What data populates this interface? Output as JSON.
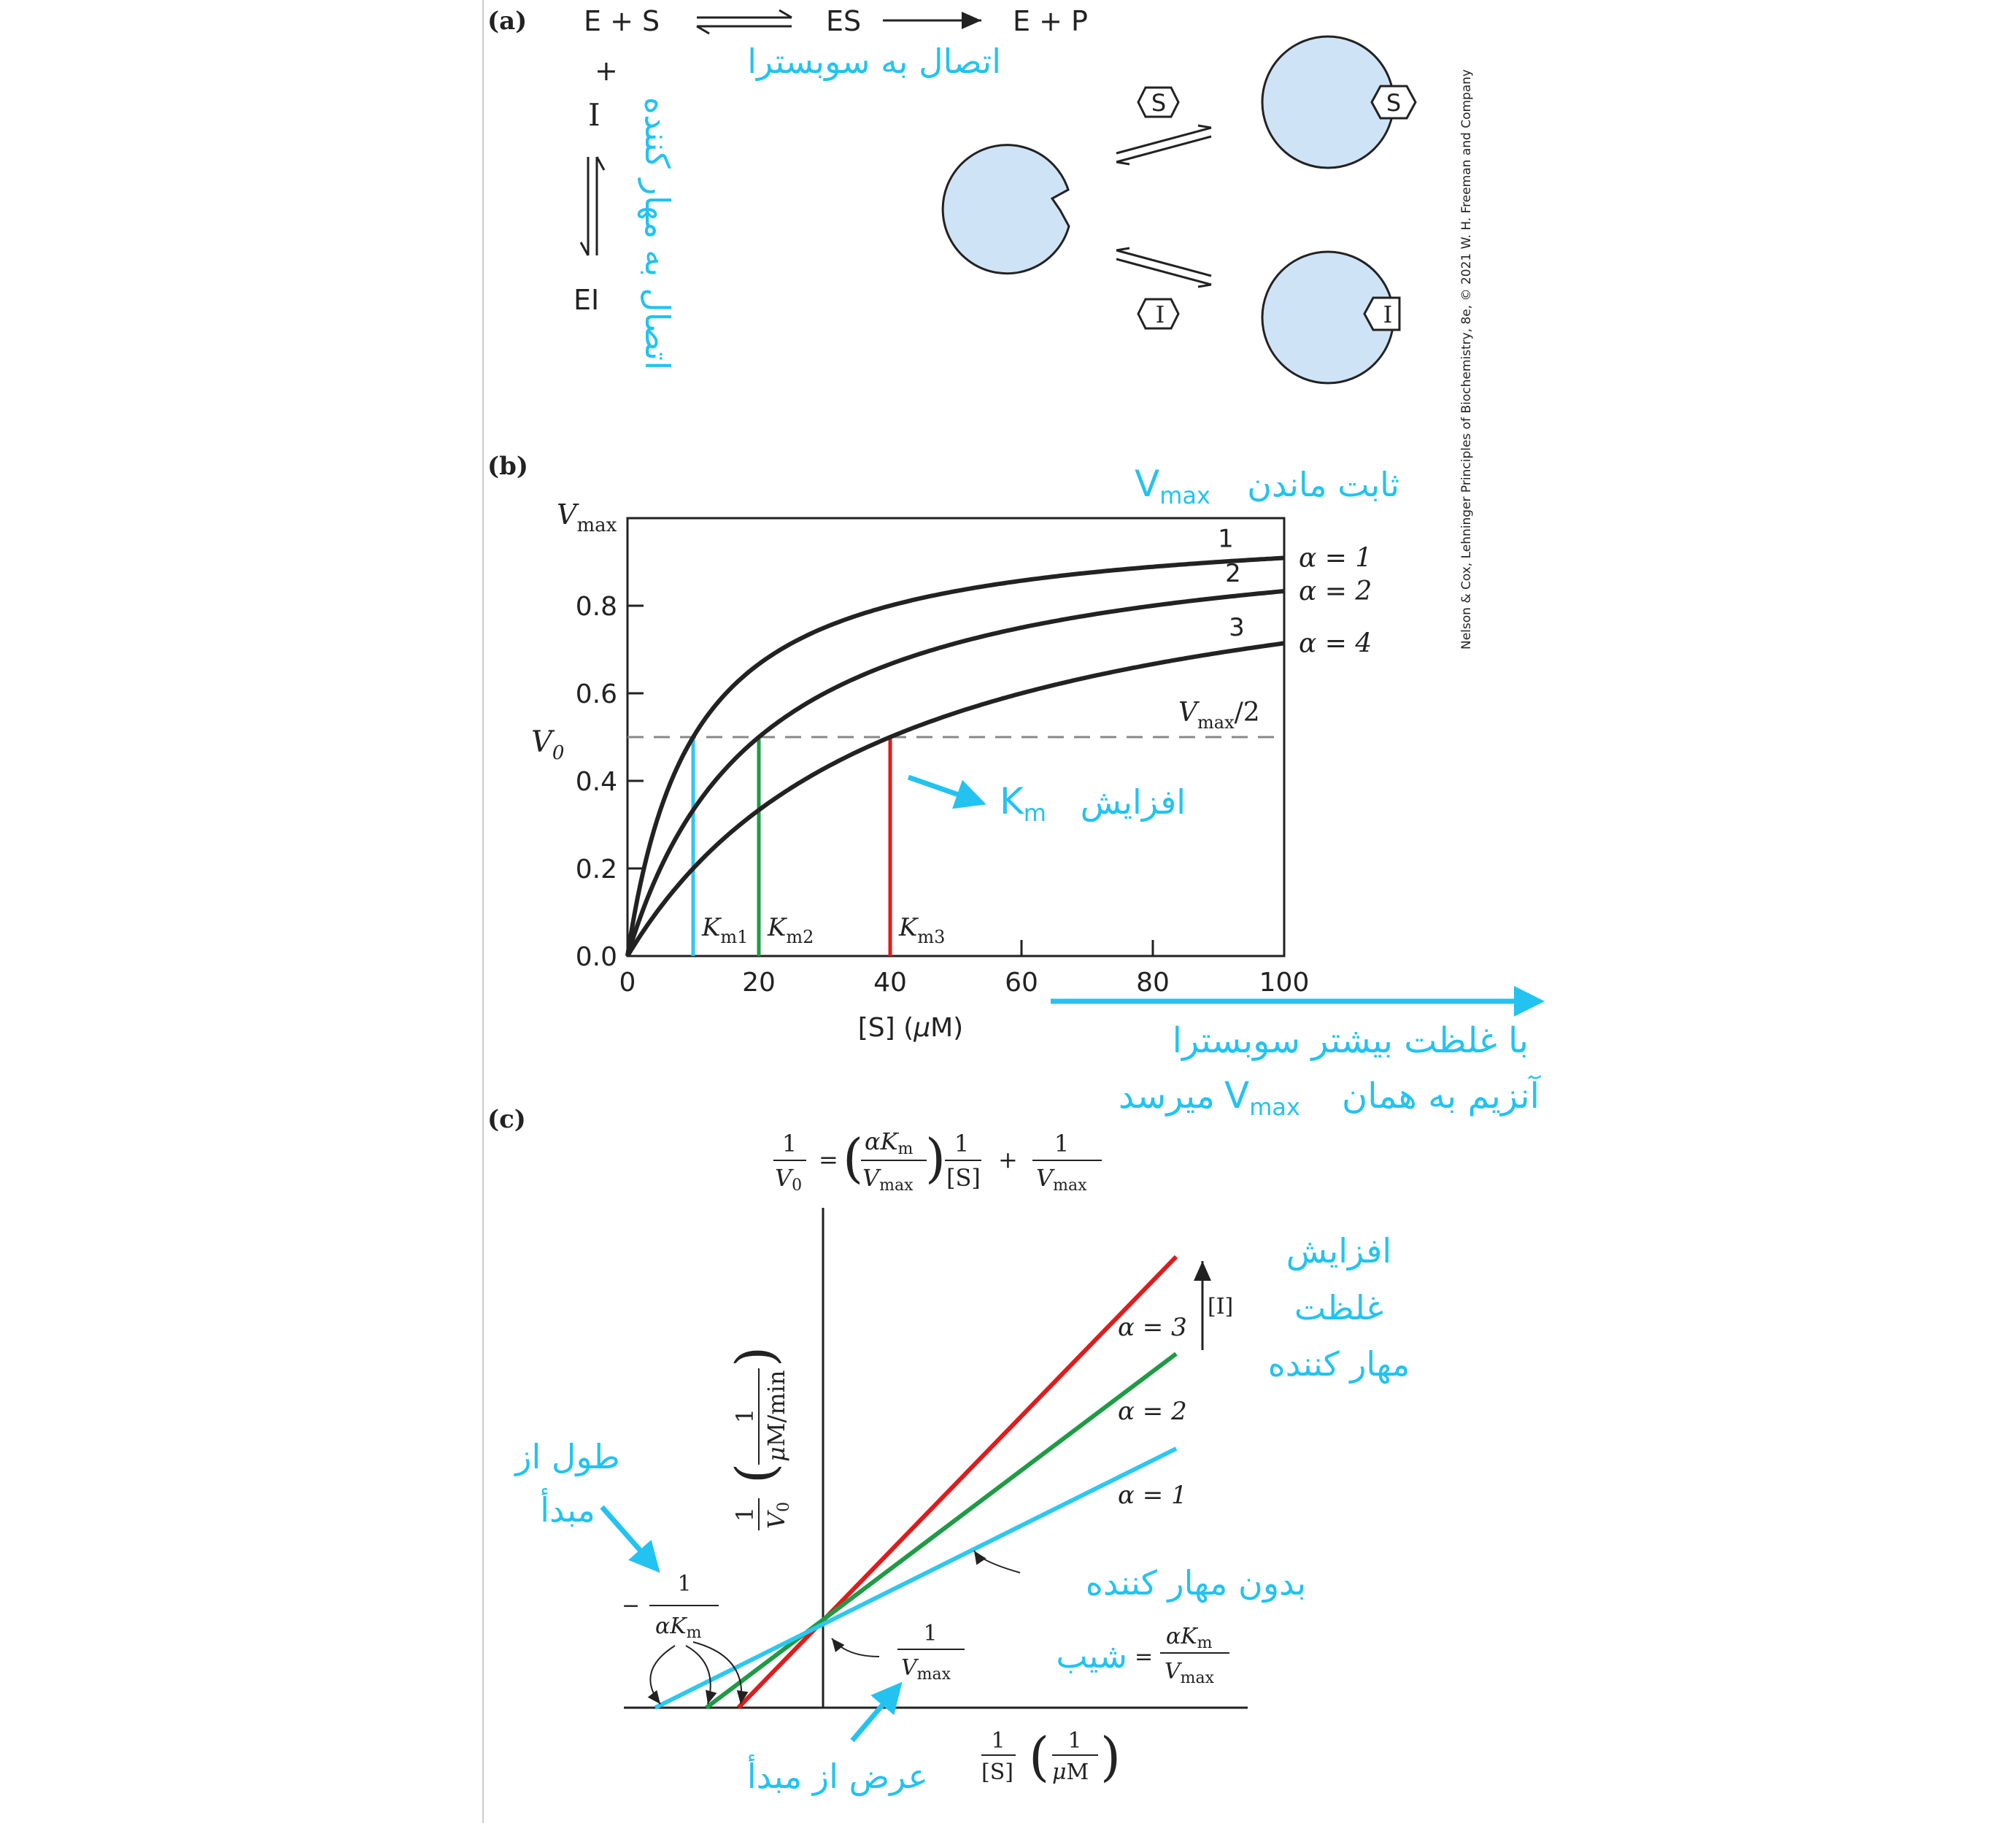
{
  "colors": {
    "ink": "#222222",
    "annotation": "#22c3f0",
    "enzyme_fill": "#cfe3f6",
    "curve_cyan": "#2ec7f0",
    "curve_green": "#1e9b45",
    "curve_red": "#e11b1b",
    "dashed": "#888888"
  },
  "credit": "Nelson & Cox, Lehninger Principles of Biochemistry, 8e, © 2021 W. H. Freeman and Company",
  "panel_a": {
    "label": "(a)",
    "scheme_top": [
      "E + S",
      "ES",
      "E + P"
    ],
    "plus": "+",
    "inhibitor": "I",
    "complex": "EI",
    "substrate_glyph": "S",
    "inhibitor_glyph": "I",
    "ann_substrate_binding": "اتصال به سوبسترا",
    "ann_inhibitor_binding": "اتصال به مهار کننده"
  },
  "panel_b": {
    "label": "(b)",
    "ann_vmax_constant": "ثابت ماندن",
    "ann_vmax_symbol": "V",
    "ann_vmax_sub": "max",
    "ann_km_word": "افزایش",
    "ann_km_symbol": "K",
    "ann_km_sub": "m",
    "ann_bottom_line1": "با غلظت بیشتر سوبسترا",
    "ann_bottom_line2_a": "آنزیم به همان",
    "ann_bottom_line2_b": "میرسد",
    "vmax_half_label": "/2"
  },
  "chart_data": [
    {
      "type": "line",
      "panel": "b",
      "xlabel": "[S] (μM)",
      "ylabel": "V0",
      "y_top_label": "Vmax",
      "x_ticks": [
        0,
        20,
        40,
        60,
        80,
        100
      ],
      "y_ticks": [
        "0.0",
        "0.2",
        "0.4",
        "0.6",
        "0.8"
      ],
      "xlim": [
        0,
        100
      ],
      "ylim": [
        0,
        1
      ],
      "km_base": 10,
      "series": [
        {
          "name": "1",
          "alpha": 1,
          "label": "α = 1",
          "km": 10
        },
        {
          "name": "2",
          "alpha": 2,
          "label": "α = 2",
          "km": 20
        },
        {
          "name": "3",
          "alpha": 4,
          "label": "α = 4",
          "km": 40
        }
      ],
      "km_markers": [
        {
          "label": "Km1",
          "x": 10,
          "color": "#2ec7f0"
        },
        {
          "label": "Km2",
          "x": 20,
          "color": "#1e9b45"
        },
        {
          "label": "Km3",
          "x": 40,
          "color": "#e11b1b"
        }
      ],
      "half_vmax_line": 0.5,
      "half_vmax_label": "Vmax/2"
    },
    {
      "type": "line",
      "panel": "c",
      "equation": "1/V0 = (αKm/Vmax)(1/[S]) + 1/Vmax",
      "xlabel": "1/[S] (1/μM)",
      "ylabel": "1/V0 (1/(μM/min))",
      "series": [
        {
          "label": "α = 3",
          "alpha": 3,
          "color": "#e11b1b"
        },
        {
          "label": "α = 2",
          "alpha": 2,
          "color": "#1e9b45"
        },
        {
          "label": "α = 1",
          "alpha": 1,
          "color": "#2ec7f0"
        }
      ],
      "inhibitor_axis_label": "[I]",
      "intercept_label": "1/Vmax",
      "x_intercept_label": "−1/(αKm)",
      "slope_label": "αKm/Vmax"
    }
  ],
  "panel_c": {
    "label": "(c)",
    "ann_inhibitor_increase": [
      "افزایش",
      "غلظت",
      "مهار کننده"
    ],
    "ann_x_intercept": [
      "طول از",
      "مبدأ"
    ],
    "ann_no_inhibitor": "بدون مهار کننده",
    "ann_slope": "شیب",
    "ann_y_intercept": "عرض از مبدأ"
  }
}
